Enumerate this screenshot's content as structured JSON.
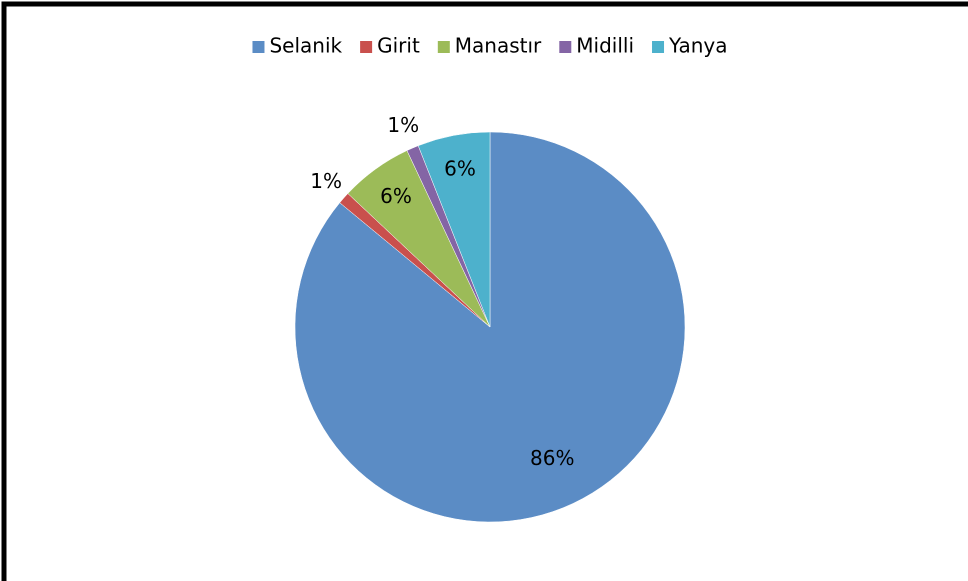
{
  "chart_data": {
    "type": "pie",
    "categories": [
      "Selanik",
      "Girit",
      "Manastır",
      "Midilli",
      "Yanya"
    ],
    "values": [
      86,
      1,
      6,
      1,
      6
    ],
    "value_labels": [
      "86%",
      "1%",
      "6%",
      "1%",
      "6%"
    ],
    "colors": [
      "#5b8cc5",
      "#c9504d",
      "#9cbb58",
      "#8465a5",
      "#4db1cc"
    ],
    "legend": "top"
  }
}
